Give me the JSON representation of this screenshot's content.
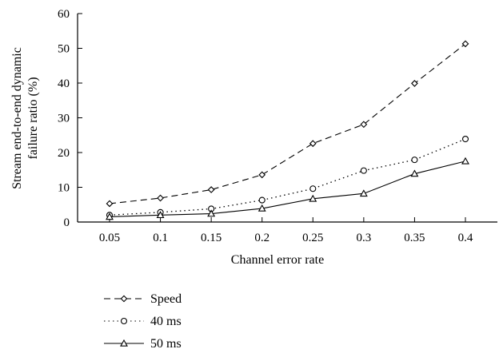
{
  "chart_data": {
    "type": "line",
    "title": "",
    "xlabel": "Channel error rate",
    "ylabel_lines": [
      "Stream end-to-end dynamic",
      "failure ratio (%)"
    ],
    "x": [
      0.05,
      0.1,
      0.15,
      0.2,
      0.25,
      0.3,
      0.35,
      0.4
    ],
    "x_tick_labels": [
      "0.05",
      "0.1",
      "0.15",
      "0.2",
      "0.25",
      "0.3",
      "0.35",
      "0.4"
    ],
    "y_ticks": [
      0,
      10,
      20,
      30,
      40,
      50,
      60
    ],
    "ylim": [
      0,
      60
    ],
    "grid": false,
    "legend_position": "below",
    "series": [
      {
        "name": "Speed",
        "values": [
          5.3,
          6.9,
          9.3,
          13.6,
          22.6,
          28.1,
          39.9,
          51.3
        ],
        "line_style": "dashed",
        "marker": "diamond",
        "color": "#000000"
      },
      {
        "name": "40 ms",
        "values": [
          2.0,
          2.8,
          3.8,
          6.3,
          9.6,
          14.8,
          17.9,
          23.9
        ],
        "line_style": "dotted",
        "marker": "circle",
        "color": "#000000"
      },
      {
        "name": "50 ms",
        "values": [
          1.5,
          2.0,
          2.4,
          3.9,
          6.7,
          8.2,
          13.9,
          17.5
        ],
        "line_style": "solid",
        "marker": "triangle",
        "color": "#000000"
      }
    ]
  }
}
